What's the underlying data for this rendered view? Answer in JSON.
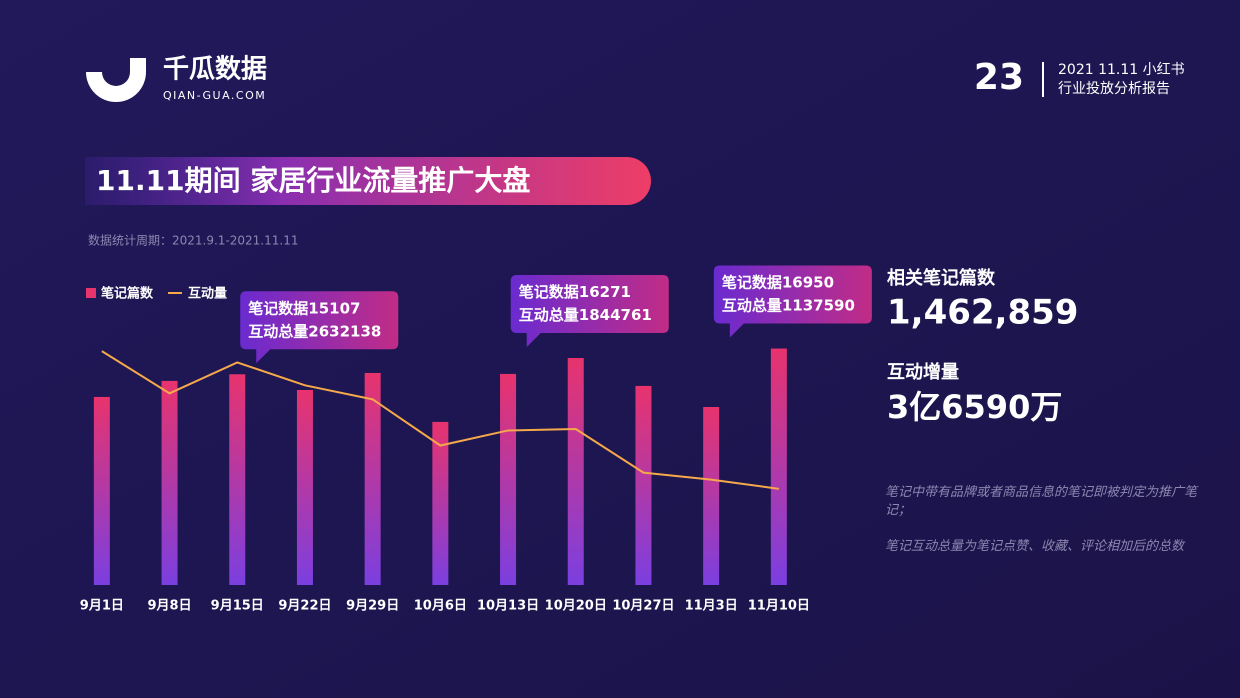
{
  "header": {
    "logo_name": "千瓜数据",
    "logo_url": "QIAN-GUA.COM",
    "page_number": "23",
    "report_line1": "2021 11.11 小红书",
    "report_line2": "行业投放分析报告"
  },
  "title": "11.11期间 家居行业流量推广大盘",
  "subtitle": "数据统计周期：2021.9.1-2021.11.11",
  "stats": [
    {
      "label": "相关笔记篇数",
      "value": "1,462,859"
    },
    {
      "label": "互动增量",
      "value": "3亿6590万"
    }
  ],
  "notes": [
    "笔记中带有品牌或者商品信息的笔记即被判定为推广笔记；",
    "笔记互动总量为笔记点赞、收藏、评论相加后的总数"
  ],
  "chart_data": {
    "type": "bar",
    "categories": [
      "9月1日",
      "9月8日",
      "9月15日",
      "9月22日",
      "9月29日",
      "10月6日",
      "10月13日",
      "10月20日",
      "10月27日",
      "11月3日",
      "11月10日"
    ],
    "annotation_prefixes": [
      "笔记数据",
      "互动总量"
    ],
    "series": [
      {
        "name": "笔记篇数",
        "type": "bar",
        "color": "#e8336d",
        "color2": "#7b3fe0",
        "values": [
          13480,
          14630,
          15107,
          13980,
          15200,
          11690,
          15130,
          16271,
          14270,
          12760,
          16950
        ],
        "value_labels": [
          null,
          null,
          "15107",
          null,
          null,
          null,
          null,
          "16271",
          null,
          null,
          "16950"
        ]
      },
      {
        "name": "互动量",
        "type": "line",
        "axis": "y2",
        "color": "#f5a94a",
        "values": [
          2766000,
          2267000,
          2632138,
          2362000,
          2196000,
          1650000,
          1828000,
          1844761,
          1329000,
          1246000,
          1137590
        ],
        "value_labels": [
          null,
          null,
          "2632138",
          null,
          null,
          null,
          null,
          "1844761",
          null,
          null,
          "1137590"
        ]
      }
    ],
    "ylim": [
      0,
      20000
    ],
    "y2lim": [
      0,
      3300000
    ],
    "legend": "top-left"
  }
}
